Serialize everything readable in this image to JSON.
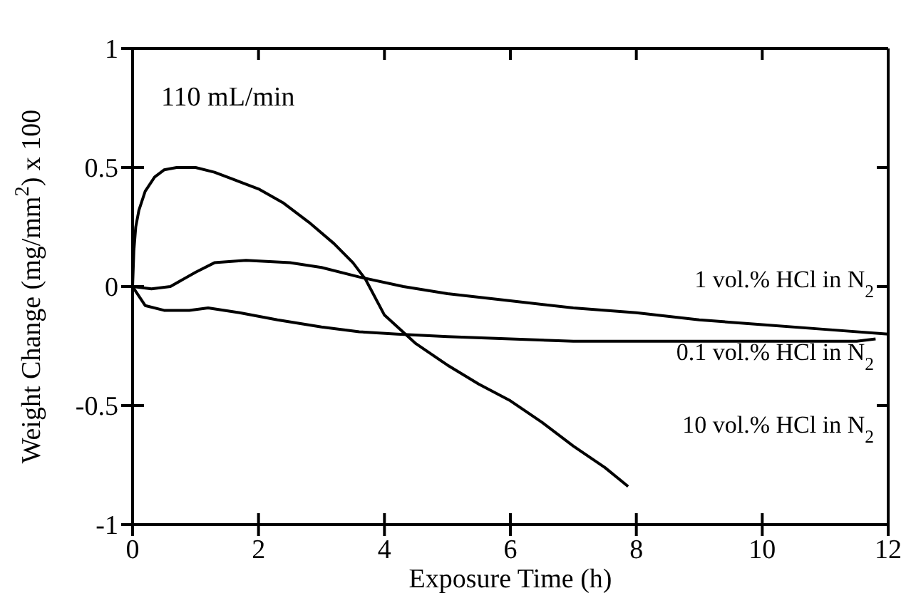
{
  "chart_data": {
    "type": "line",
    "xlabel": "Exposure Time (h)",
    "ylabel": "Weight Change (mg/mm$^{2}$) x 100",
    "xlim": [
      0,
      12
    ],
    "xticks": [
      0,
      2,
      4,
      6,
      8,
      10,
      12
    ],
    "ylim": [
      -1,
      1
    ],
    "yticks": [
      -1,
      -0.5,
      0,
      0.5,
      1
    ],
    "grid": false,
    "marker": "none",
    "line_style": "solid",
    "annotations": [
      "110 mL/min"
    ],
    "series": [
      {
        "name": "10 vol.% HCl in N$_{2}$",
        "color": "#000000",
        "x": [
          0,
          0.02,
          0.05,
          0.1,
          0.2,
          0.35,
          0.5,
          0.7,
          1,
          1.3,
          1.6,
          2,
          2.4,
          2.8,
          3.2,
          3.5,
          3.7,
          4,
          4.5,
          5,
          5.5,
          6,
          6.5,
          7,
          7.5,
          7.87
        ],
        "values": [
          0,
          0.15,
          0.25,
          0.32,
          0.4,
          0.46,
          0.49,
          0.5,
          0.5,
          0.48,
          0.45,
          0.41,
          0.35,
          0.27,
          0.18,
          0.1,
          0.03,
          -0.12,
          -0.24,
          -0.33,
          -0.41,
          -0.48,
          -0.57,
          -0.67,
          -0.76,
          -0.84
        ]
      },
      {
        "name": "1 vol.% HCl in N$_{2}$",
        "color": "#000000",
        "x": [
          0,
          0.3,
          0.6,
          1,
          1.3,
          1.8,
          2.5,
          3,
          3.6,
          4.3,
          5,
          6,
          7,
          8,
          9,
          10,
          11,
          12
        ],
        "values": [
          0,
          -0.01,
          0,
          0.06,
          0.1,
          0.11,
          0.1,
          0.08,
          0.04,
          0,
          -0.03,
          -0.06,
          -0.09,
          -0.11,
          -0.14,
          -0.16,
          -0.18,
          -0.2
        ]
      },
      {
        "name": "0.1 vol.% HCl in N$_{2}$",
        "color": "#000000",
        "x": [
          0,
          0.2,
          0.5,
          0.9,
          1.2,
          1.7,
          2.3,
          3,
          3.6,
          4.2,
          5,
          6,
          7,
          8,
          9,
          10,
          11,
          11.5,
          11.8
        ],
        "values": [
          0,
          -0.08,
          -0.1,
          -0.1,
          -0.09,
          -0.11,
          -0.14,
          -0.17,
          -0.19,
          -0.2,
          -0.21,
          -0.22,
          -0.23,
          -0.23,
          -0.23,
          -0.23,
          -0.23,
          -0.23,
          -0.22
        ]
      }
    ]
  }
}
